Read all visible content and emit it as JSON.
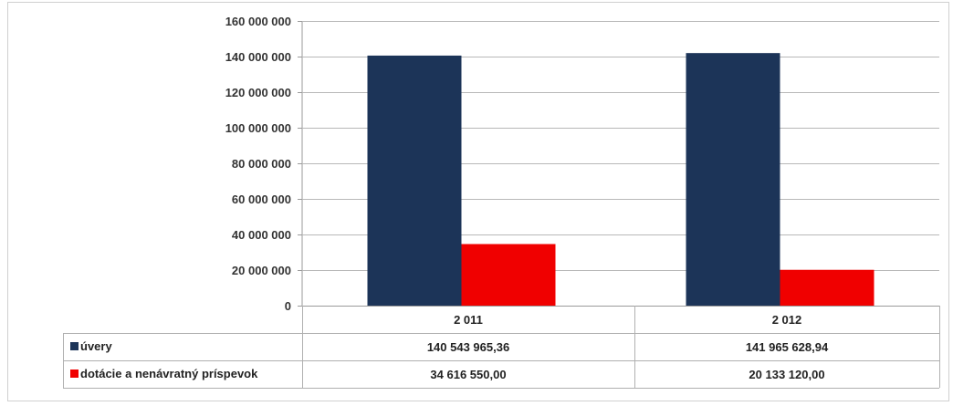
{
  "colors": {
    "uvery": "#1c3458",
    "dotacie": "#f00000",
    "grid": "#b8b8b8"
  },
  "chart_data": {
    "type": "bar",
    "categories": [
      "2 011",
      "2 012"
    ],
    "series": [
      {
        "name": "úvery",
        "values": [
          140543965.36,
          141965628.94
        ],
        "labels": [
          "140 543 965,36",
          "141 965 628,94"
        ]
      },
      {
        "name": "dotácie a nenávratný príspevok",
        "values": [
          34616550.0,
          20133120.0
        ],
        "labels": [
          "34 616 550,00",
          "20 133 120,00"
        ]
      }
    ],
    "ylim": [
      0,
      160000000
    ],
    "yticks": [
      0,
      20000000,
      40000000,
      60000000,
      80000000,
      100000000,
      120000000,
      140000000,
      160000000
    ],
    "ytick_labels": [
      "0",
      "20 000 000",
      "40 000 000",
      "60 000 000",
      "80 000 000",
      "100 000 000",
      "120 000 000",
      "140 000 000",
      "160 000 000"
    ],
    "grid": true,
    "legend": "data-table"
  }
}
